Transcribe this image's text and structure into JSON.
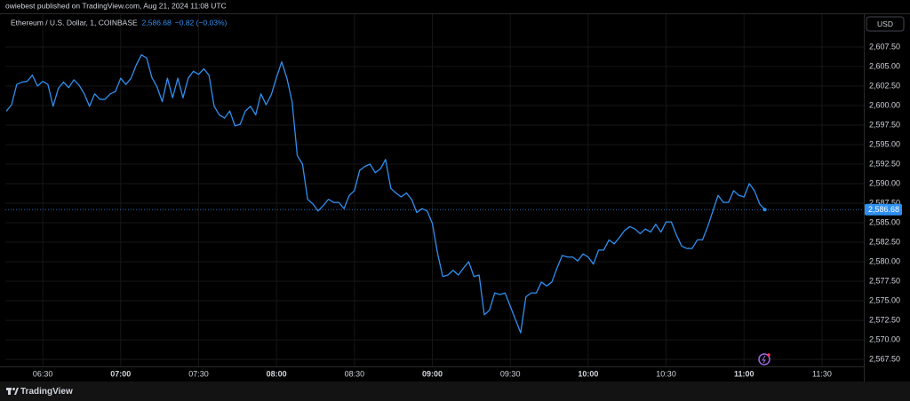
{
  "header": {
    "publisher": "owiebest published on TradingView.com, Aug 21, 2024 11:08 UTC",
    "brand": "TradingView"
  },
  "chart_data": {
    "type": "line",
    "title": "Ethereum / U.S. Dollar, 1, COINBASE",
    "change": "−0.82 (−0.03%)",
    "currency": "USD",
    "last_price": {
      "value": 2586.68,
      "label": "2,586.68"
    },
    "x": [
      376,
      378,
      380,
      382,
      384,
      386,
      388,
      390,
      392,
      394,
      396,
      398,
      400,
      402,
      404,
      406,
      408,
      410,
      412,
      414,
      416,
      418,
      420,
      422,
      424,
      426,
      428,
      430,
      432,
      434,
      436,
      438,
      440,
      442,
      444,
      446,
      448,
      450,
      452,
      454,
      456,
      458,
      460,
      462,
      464,
      466,
      468,
      470,
      472,
      474,
      476,
      478,
      480,
      482,
      484,
      486,
      488,
      490,
      492,
      494,
      496,
      498,
      500,
      502,
      504,
      506,
      508,
      510,
      512,
      514,
      516,
      518,
      520,
      522,
      524,
      526,
      528,
      530,
      532,
      534,
      536,
      538,
      540,
      542,
      544,
      546,
      548,
      550,
      552,
      554,
      556,
      558,
      560,
      562,
      564,
      566,
      568,
      570,
      572,
      574,
      576,
      578,
      580,
      582,
      584,
      586,
      588,
      590,
      592,
      594,
      596,
      598,
      600,
      602,
      604,
      606,
      608,
      610,
      612,
      614,
      616,
      618,
      620,
      622,
      624,
      626,
      628,
      630,
      632,
      634,
      636,
      638,
      640,
      642,
      644,
      646,
      648,
      650,
      652,
      654,
      656,
      658,
      660,
      662,
      664,
      666,
      668
    ],
    "series": [
      {
        "name": "ETHUSD",
        "color": "#2f8ff0",
        "values": [
          2599.3,
          2600.1,
          2602.7,
          2603.0,
          2603.1,
          2603.9,
          2602.5,
          2603.1,
          2602.7,
          2599.9,
          2602.2,
          2603.0,
          2602.3,
          2603.3,
          2602.6,
          2601.5,
          2599.9,
          2601.5,
          2600.8,
          2600.8,
          2601.5,
          2601.8,
          2603.5,
          2602.7,
          2603.5,
          2605.2,
          2606.5,
          2606.1,
          2603.6,
          2602.4,
          2600.5,
          2603.5,
          2601.0,
          2603.5,
          2601.0,
          2603.5,
          2604.4,
          2604.0,
          2604.7,
          2603.9,
          2599.9,
          2598.8,
          2598.4,
          2599.3,
          2597.4,
          2597.6,
          2599.3,
          2599.9,
          2598.8,
          2601.5,
          2600.1,
          2601.4,
          2603.6,
          2605.6,
          2603.5,
          2600.5,
          2593.6,
          2592.5,
          2588.0,
          2587.4,
          2586.5,
          2587.2,
          2588.0,
          2587.6,
          2587.6,
          2586.8,
          2588.5,
          2589.1,
          2591.7,
          2592.2,
          2592.5,
          2591.4,
          2591.9,
          2593.1,
          2589.4,
          2588.8,
          2588.3,
          2588.8,
          2588.0,
          2586.3,
          2586.8,
          2586.5,
          2584.9,
          2581.1,
          2578.1,
          2578.3,
          2578.9,
          2578.3,
          2579.2,
          2580.0,
          2578.1,
          2578.3,
          2573.2,
          2573.8,
          2576.0,
          2575.8,
          2576.0,
          2574.3,
          2572.6,
          2570.9,
          2575.5,
          2576.0,
          2576.0,
          2577.4,
          2576.9,
          2577.4,
          2579.2,
          2580.8,
          2580.6,
          2580.6,
          2580.1,
          2581.0,
          2580.6,
          2579.7,
          2581.5,
          2581.5,
          2582.8,
          2582.3,
          2583.1,
          2584.0,
          2584.5,
          2584.2,
          2583.6,
          2584.2,
          2583.8,
          2584.8,
          2583.8,
          2585.1,
          2585.1,
          2583.4,
          2582.0,
          2581.7,
          2581.7,
          2582.8,
          2582.8,
          2584.5,
          2586.5,
          2588.5,
          2587.6,
          2587.6,
          2589.1,
          2588.5,
          2588.3,
          2590.0,
          2589.1,
          2587.4,
          2586.68
        ]
      }
    ],
    "xlim": [
      375.6,
      706.1
    ],
    "xticks": [
      {
        "value": 390,
        "label": "06:30"
      },
      {
        "value": 420,
        "label": "07:00"
      },
      {
        "value": 450,
        "label": "07:30"
      },
      {
        "value": 480,
        "label": "08:00"
      },
      {
        "value": 510,
        "label": "08:30"
      },
      {
        "value": 540,
        "label": "09:00"
      },
      {
        "value": 570,
        "label": "09:30"
      },
      {
        "value": 600,
        "label": "10:00"
      },
      {
        "value": 630,
        "label": "10:30"
      },
      {
        "value": 660,
        "label": "11:00"
      },
      {
        "value": 690,
        "label": "11:30"
      }
    ],
    "ylim": [
      2566.6,
      2611.7
    ],
    "yticks": [
      {
        "value": 2567.5,
        "label": "2,567.50"
      },
      {
        "value": 2570,
        "label": "2,570.00"
      },
      {
        "value": 2572.5,
        "label": "2,572.50"
      },
      {
        "value": 2575,
        "label": "2,575.00"
      },
      {
        "value": 2577.5,
        "label": "2,577.50"
      },
      {
        "value": 2580,
        "label": "2,580.00"
      },
      {
        "value": 2582.5,
        "label": "2,582.50"
      },
      {
        "value": 2585,
        "label": "2,585.00"
      },
      {
        "value": 2587.5,
        "label": "2,587.50"
      },
      {
        "value": 2590,
        "label": "2,590.00"
      },
      {
        "value": 2592.5,
        "label": "2,592.50"
      },
      {
        "value": 2595,
        "label": "2,595.00"
      },
      {
        "value": 2597.5,
        "label": "2,597.50"
      },
      {
        "value": 2600,
        "label": "2,600.00"
      },
      {
        "value": 2602.5,
        "label": "2,602.50"
      },
      {
        "value": 2605,
        "label": "2,605.00"
      },
      {
        "value": 2607.5,
        "label": "2,607.50"
      }
    ],
    "grid": true
  }
}
